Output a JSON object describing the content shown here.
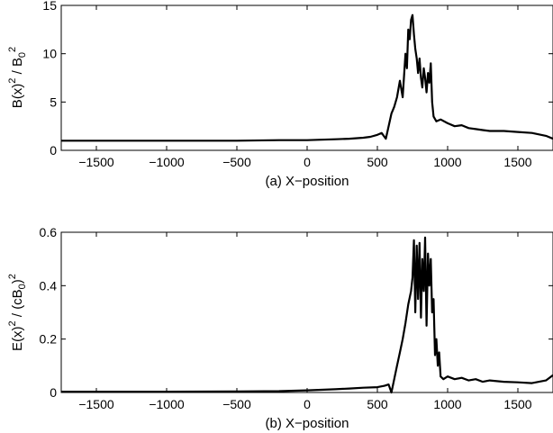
{
  "chart_data": [
    {
      "type": "line",
      "title": "",
      "xlabel": "(a) X−position",
      "ylabel": {
        "main": "B(x)",
        "sup1": "2",
        "mid": " / B",
        "sub": "0",
        "sup2": "2"
      },
      "xlim": [
        -1750,
        1750
      ],
      "ylim": [
        0,
        15
      ],
      "xticks": [
        -1500,
        -1000,
        -500,
        0,
        500,
        1000,
        1500
      ],
      "xtick_labels": [
        "−1500",
        "−1000",
        "−500",
        "0",
        "500",
        "1000",
        "1500"
      ],
      "yticks": [
        0,
        5,
        10,
        15
      ],
      "ytick_labels": [
        "0",
        "5",
        "10",
        "15"
      ],
      "grid": false,
      "color": "#000000",
      "series": [
        {
          "x": [
            -1750,
            -1500,
            -1000,
            -500,
            -200,
            0,
            100,
            200,
            300,
            400,
            450,
            500,
            530,
            560,
            580,
            600,
            620,
            640,
            660,
            680,
            700,
            710,
            720,
            730,
            740,
            750,
            760,
            770,
            780,
            790,
            800,
            810,
            820,
            830,
            840,
            850,
            860,
            870,
            880,
            890,
            900,
            920,
            950,
            1000,
            1050,
            1100,
            1150,
            1200,
            1250,
            1300,
            1400,
            1500,
            1600,
            1700,
            1750
          ],
          "y": [
            1.0,
            1.0,
            1.0,
            1.0,
            1.05,
            1.05,
            1.1,
            1.15,
            1.2,
            1.3,
            1.4,
            1.6,
            1.8,
            1.2,
            2.5,
            3.8,
            4.5,
            5.5,
            7.2,
            5.5,
            10.0,
            8.5,
            12.5,
            11.5,
            13.5,
            14.0,
            12.0,
            10.5,
            9.5,
            8.0,
            9.5,
            7.5,
            6.5,
            8.5,
            7.5,
            6.0,
            8.0,
            7.0,
            9.0,
            5.0,
            3.5,
            3.0,
            3.2,
            2.8,
            2.5,
            2.6,
            2.3,
            2.2,
            2.1,
            2.0,
            2.0,
            1.9,
            1.8,
            1.5,
            1.2
          ]
        }
      ]
    },
    {
      "type": "line",
      "title": "",
      "xlabel": "(b) X−position",
      "ylabel": {
        "main": "E(x)",
        "sup1": "2",
        "mid": " / (cB",
        "sub": "0",
        "close": ")",
        "sup2": "2"
      },
      "xlim": [
        -1750,
        1750
      ],
      "ylim": [
        0,
        0.6
      ],
      "xticks": [
        -1500,
        -1000,
        -500,
        0,
        500,
        1000,
        1500
      ],
      "xtick_labels": [
        "−1500",
        "−1000",
        "−500",
        "0",
        "500",
        "1000",
        "1500"
      ],
      "yticks": [
        0,
        0.2,
        0.4,
        0.6
      ],
      "ytick_labels": [
        "0",
        "0.2",
        "0.4",
        "0.6"
      ],
      "grid": false,
      "color": "#000000",
      "series": [
        {
          "x": [
            -1750,
            -1000,
            -500,
            -200,
            0,
            100,
            200,
            300,
            400,
            500,
            550,
            580,
            600,
            620,
            640,
            660,
            680,
            700,
            720,
            740,
            750,
            760,
            770,
            780,
            790,
            800,
            810,
            820,
            830,
            840,
            850,
            860,
            870,
            880,
            890,
            900,
            910,
            920,
            930,
            940,
            950,
            970,
            1000,
            1050,
            1100,
            1150,
            1200,
            1250,
            1300,
            1400,
            1500,
            1600,
            1650,
            1700,
            1750
          ],
          "y": [
            0.003,
            0.003,
            0.004,
            0.005,
            0.008,
            0.01,
            0.012,
            0.015,
            0.018,
            0.02,
            0.025,
            0.03,
            0.0,
            0.05,
            0.1,
            0.15,
            0.2,
            0.26,
            0.33,
            0.38,
            0.43,
            0.57,
            0.3,
            0.55,
            0.35,
            0.56,
            0.28,
            0.5,
            0.38,
            0.58,
            0.25,
            0.52,
            0.4,
            0.5,
            0.3,
            0.35,
            0.14,
            0.2,
            0.1,
            0.15,
            0.06,
            0.05,
            0.06,
            0.05,
            0.055,
            0.045,
            0.05,
            0.04,
            0.045,
            0.04,
            0.038,
            0.035,
            0.04,
            0.045,
            0.065
          ]
        }
      ]
    }
  ]
}
